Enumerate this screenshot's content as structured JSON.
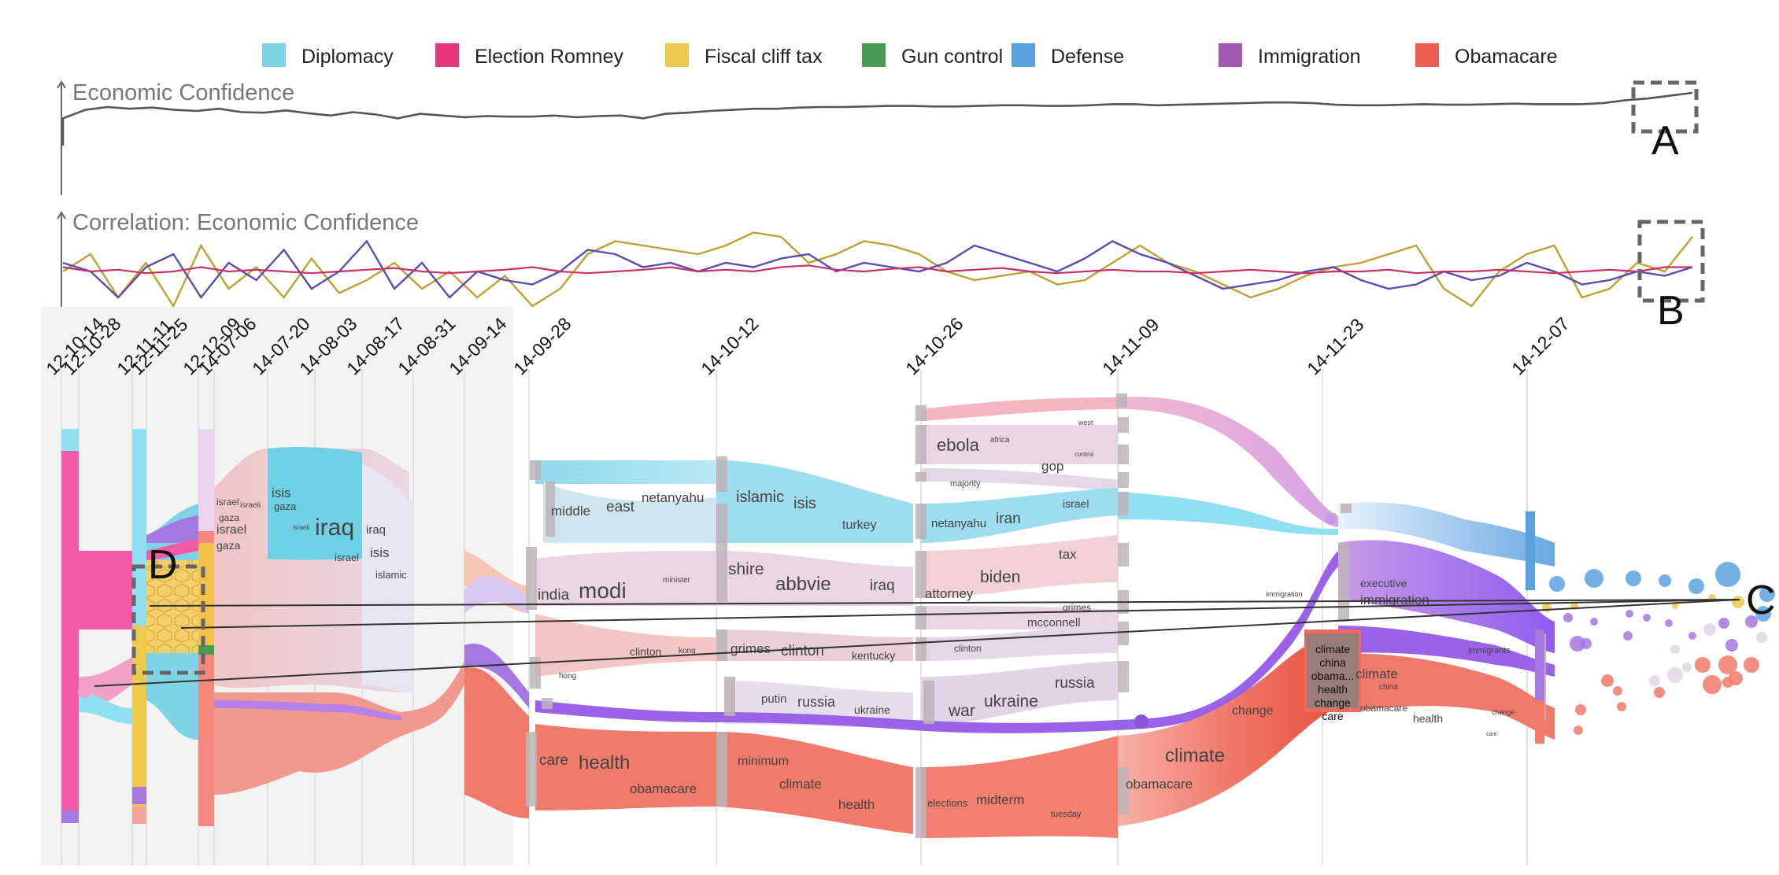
{
  "legend": [
    {
      "label": "Diplomacy",
      "color": "#7fd3e6"
    },
    {
      "label": "Election Romney",
      "color": "#e8357f"
    },
    {
      "label": "Fiscal cliff tax",
      "color": "#ecc94b"
    },
    {
      "label": "Gun control",
      "color": "#4b9a53"
    },
    {
      "label": "Defense",
      "color": "#5aa2de"
    },
    {
      "label": "Immigration",
      "color": "#a259b0"
    },
    {
      "label": "Obamacare",
      "color": "#ee5d52"
    }
  ],
  "panels": {
    "economic_title": "Economic Confidence",
    "correlation_title": "Correlation: Economic Confidence"
  },
  "chart_data": {
    "type": "line",
    "economic_confidence": [
      0.55,
      0.7,
      0.75,
      0.72,
      0.74,
      0.7,
      0.68,
      0.72,
      0.66,
      0.65,
      0.69,
      0.64,
      0.6,
      0.66,
      0.62,
      0.55,
      0.63,
      0.6,
      0.57,
      0.59,
      0.58,
      0.58,
      0.6,
      0.57,
      0.59,
      0.6,
      0.55,
      0.63,
      0.65,
      0.68,
      0.7,
      0.72,
      0.72,
      0.74,
      0.75,
      0.75,
      0.76,
      0.77,
      0.77,
      0.76,
      0.76,
      0.77,
      0.78,
      0.78,
      0.77,
      0.77,
      0.78,
      0.8,
      0.8,
      0.78,
      0.79,
      0.8,
      0.81,
      0.82,
      0.83,
      0.83,
      0.82,
      0.79,
      0.78,
      0.78,
      0.79,
      0.8,
      0.79,
      0.79,
      0.8,
      0.81,
      0.8,
      0.8,
      0.8,
      0.82,
      0.87,
      0.9,
      0.95,
      1.0
    ],
    "correlation_series": [
      {
        "color": "#c0a030",
        "values": [
          0.5,
          0.7,
          0.2,
          0.6,
          0.1,
          0.8,
          0.3,
          0.55,
          0.2,
          0.65,
          0.25,
          0.4,
          0.6,
          0.3,
          0.5,
          0.2,
          0.45,
          0.1,
          0.3,
          0.7,
          0.85,
          0.8,
          0.75,
          0.7,
          0.8,
          0.95,
          0.9,
          0.6,
          0.7,
          0.85,
          0.8,
          0.7,
          0.5,
          0.4,
          0.45,
          0.5,
          0.35,
          0.4,
          0.6,
          0.8,
          0.6,
          0.5,
          0.35,
          0.2,
          0.3,
          0.45,
          0.55,
          0.6,
          0.7,
          0.8,
          0.3,
          0.1,
          0.5,
          0.7,
          0.8,
          0.2,
          0.3,
          0.6,
          0.5,
          0.9
        ]
      },
      {
        "color": "#5b4bb0",
        "values": [
          0.6,
          0.5,
          0.2,
          0.55,
          0.7,
          0.2,
          0.6,
          0.4,
          0.75,
          0.3,
          0.5,
          0.85,
          0.3,
          0.6,
          0.2,
          0.5,
          0.4,
          0.35,
          0.5,
          0.75,
          0.7,
          0.55,
          0.6,
          0.5,
          0.6,
          0.55,
          0.65,
          0.7,
          0.5,
          0.6,
          0.55,
          0.5,
          0.6,
          0.8,
          0.7,
          0.6,
          0.5,
          0.65,
          0.85,
          0.7,
          0.6,
          0.45,
          0.3,
          0.35,
          0.4,
          0.5,
          0.55,
          0.4,
          0.3,
          0.35,
          0.5,
          0.4,
          0.45,
          0.6,
          0.5,
          0.35,
          0.4,
          0.5,
          0.45,
          0.55
        ]
      },
      {
        "color": "#c8306a",
        "values": [
          0.55,
          0.5,
          0.52,
          0.48,
          0.5,
          0.55,
          0.5,
          0.52,
          0.5,
          0.48,
          0.5,
          0.52,
          0.54,
          0.5,
          0.48,
          0.5,
          0.52,
          0.55,
          0.5,
          0.48,
          0.5,
          0.52,
          0.55,
          0.5,
          0.52,
          0.5,
          0.55,
          0.57,
          0.52,
          0.5,
          0.53,
          0.55,
          0.5,
          0.52,
          0.54,
          0.5,
          0.48,
          0.5,
          0.52,
          0.5,
          0.5,
          0.48,
          0.5,
          0.52,
          0.5,
          0.48,
          0.5,
          0.5,
          0.52,
          0.48,
          0.5,
          0.5,
          0.52,
          0.5,
          0.48,
          0.5,
          0.52,
          0.5,
          0.55,
          0.55
        ]
      }
    ]
  },
  "dates": [
    "12-10-14",
    "12-10-28",
    "12-11-11",
    "12-11-25",
    "12-12-09",
    "14-07-06",
    "14-07-20",
    "14-08-03",
    "14-08-17",
    "14-08-31",
    "14-09-14",
    "14-09-28",
    "14-10-12",
    "14-10-26",
    "14-11-09",
    "14-11-23",
    "14-12-07"
  ],
  "callouts": {
    "a": "A",
    "b": "B",
    "c": "C",
    "d": "D"
  },
  "words": [
    {
      "t": "israel",
      "s": 12
    },
    {
      "t": "gaza",
      "s": 12
    },
    {
      "t": "isis",
      "s": 17
    },
    {
      "t": "israeli",
      "s": 10
    },
    {
      "t": "gaza",
      "s": 13
    },
    {
      "t": "israeli",
      "s": 8
    },
    {
      "t": "iraq",
      "s": 30
    },
    {
      "t": "iraq",
      "s": 15
    },
    {
      "t": "isis",
      "s": 17
    },
    {
      "t": "israel",
      "s": 13
    },
    {
      "t": "islamic",
      "s": 13
    },
    {
      "t": "israel",
      "s": 16
    },
    {
      "t": "gaza",
      "s": 14
    },
    {
      "t": "middle",
      "s": 17
    },
    {
      "t": "east",
      "s": 19
    },
    {
      "t": "netanyahu",
      "s": 17
    },
    {
      "t": "islamic",
      "s": 20
    },
    {
      "t": "isis",
      "s": 20
    },
    {
      "t": "turkey",
      "s": 16
    },
    {
      "t": "ebola",
      "s": 22
    },
    {
      "t": "africa",
      "s": 10
    },
    {
      "t": "west",
      "s": 9
    },
    {
      "t": "gop",
      "s": 17
    },
    {
      "t": "control",
      "s": 8
    },
    {
      "t": "majority",
      "s": 11
    },
    {
      "t": "netanyahu",
      "s": 15
    },
    {
      "t": "iran",
      "s": 19
    },
    {
      "t": "israel",
      "s": 14
    },
    {
      "t": "india",
      "s": 19
    },
    {
      "t": "modi",
      "s": 28
    },
    {
      "t": "minister",
      "s": 10
    },
    {
      "t": "shire",
      "s": 21
    },
    {
      "t": "abbvie",
      "s": 24
    },
    {
      "t": "iraq",
      "s": 19
    },
    {
      "t": "attorney",
      "s": 17
    },
    {
      "t": "biden",
      "s": 21
    },
    {
      "t": "tax",
      "s": 17
    },
    {
      "t": "grimes",
      "s": 12
    },
    {
      "t": "mcconnell",
      "s": 15
    },
    {
      "t": "clinton",
      "s": 14
    },
    {
      "t": "kong",
      "s": 10
    },
    {
      "t": "grimes",
      "s": 17
    },
    {
      "t": "clinton",
      "s": 19
    },
    {
      "t": "kentucky",
      "s": 14
    },
    {
      "t": "clinton",
      "s": 12
    },
    {
      "t": "hong",
      "s": 10
    },
    {
      "t": "putin",
      "s": 15
    },
    {
      "t": "russia",
      "s": 18
    },
    {
      "t": "ukraine",
      "s": 14
    },
    {
      "t": "war",
      "s": 21
    },
    {
      "t": "ukraine",
      "s": 21
    },
    {
      "t": "russia",
      "s": 19
    },
    {
      "t": "care",
      "s": 19
    },
    {
      "t": "health",
      "s": 24
    },
    {
      "t": "obamacare",
      "s": 17
    },
    {
      "t": "minimum",
      "s": 16
    },
    {
      "t": "climate",
      "s": 17
    },
    {
      "t": "health",
      "s": 17
    },
    {
      "t": "elections",
      "s": 13
    },
    {
      "t": "midterm",
      "s": 17
    },
    {
      "t": "tuesday",
      "s": 11
    },
    {
      "t": "obamacare",
      "s": 17
    },
    {
      "t": "climate",
      "s": 24
    },
    {
      "t": "change",
      "s": 16
    },
    {
      "t": "immigration",
      "s": 9
    },
    {
      "t": "executive",
      "s": 14
    },
    {
      "t": "immigration",
      "s": 17
    },
    {
      "t": "climate",
      "s": 17
    },
    {
      "t": "china",
      "s": 10
    },
    {
      "t": "obamacare",
      "s": 12
    },
    {
      "t": "health",
      "s": 14
    },
    {
      "t": "immigrants",
      "s": 11
    },
    {
      "t": "change",
      "s": 9
    },
    {
      "t": "care",
      "s": 7
    }
  ],
  "box_words": [
    "climate",
    "china",
    "obama...",
    "health",
    "change",
    "care"
  ]
}
